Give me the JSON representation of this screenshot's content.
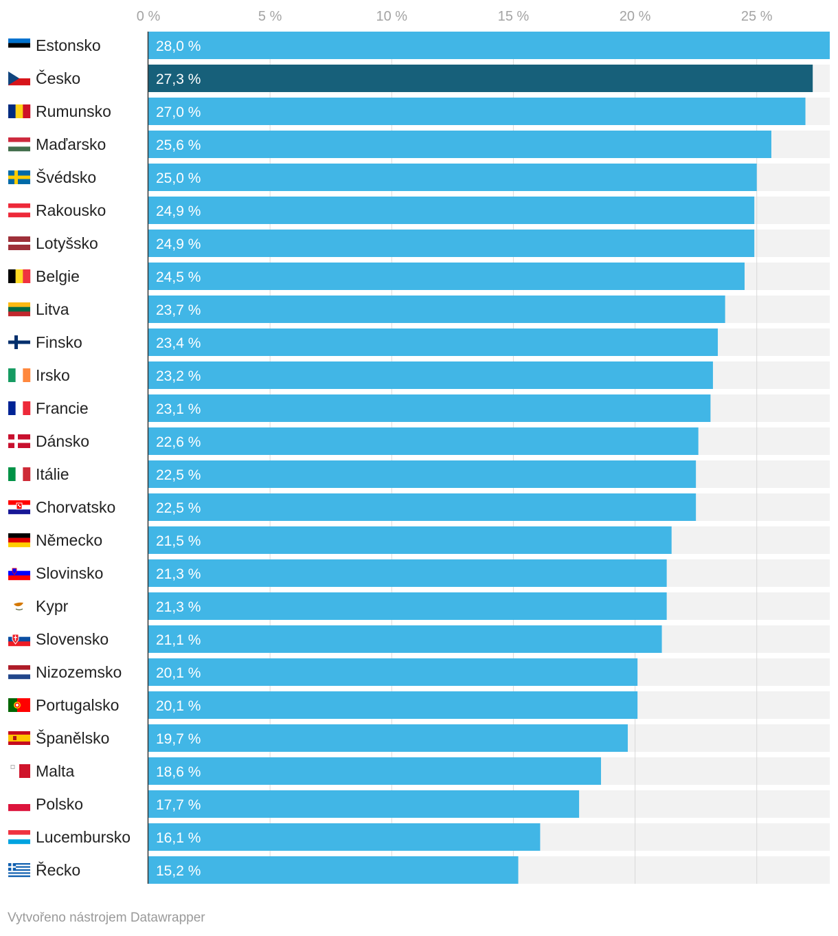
{
  "chart_data": {
    "type": "bar",
    "orientation": "horizontal",
    "xlim": [
      0,
      28
    ],
    "ticks": [
      0,
      5,
      10,
      15,
      20,
      25
    ],
    "tick_labels": [
      "0 %",
      "5 %",
      "10 %",
      "15 %",
      "20 %",
      "25 %"
    ],
    "grid": true,
    "categories": [
      "Estonsko",
      "Česko",
      "Rumunsko",
      "Maďarsko",
      "Švédsko",
      "Rakousko",
      "Lotyšsko",
      "Belgie",
      "Litva",
      "Finsko",
      "Irsko",
      "Francie",
      "Dánsko",
      "Itálie",
      "Chorvatsko",
      "Německo",
      "Slovinsko",
      "Kypr",
      "Slovensko",
      "Nizozemsko",
      "Portugalsko",
      "Španělsko",
      "Malta",
      "Polsko",
      "Lucembursko",
      "Řecko"
    ],
    "values": [
      28.0,
      27.3,
      27.0,
      25.6,
      25.0,
      24.9,
      24.9,
      24.5,
      23.7,
      23.4,
      23.2,
      23.1,
      22.6,
      22.5,
      22.5,
      21.5,
      21.3,
      21.3,
      21.1,
      20.1,
      20.1,
      19.7,
      18.6,
      17.7,
      16.1,
      15.2
    ],
    "value_labels": [
      "28,0 %",
      "27,3 %",
      "27,0 %",
      "25,6 %",
      "25,0 %",
      "24,9 %",
      "24,9 %",
      "24,5 %",
      "23,7 %",
      "23,4 %",
      "23,2 %",
      "23,1 %",
      "22,6 %",
      "22,5 %",
      "22,5 %",
      "21,5 %",
      "21,3 %",
      "21,3 %",
      "21,1 %",
      "20,1 %",
      "20,1 %",
      "19,7 %",
      "18,6 %",
      "17,7 %",
      "16,1 %",
      "15,2 %"
    ],
    "flags": [
      "flag-ee",
      "flag-cz",
      "flag-ro",
      "flag-hu",
      "flag-se",
      "flag-at",
      "flag-lv",
      "flag-be",
      "flag-lt",
      "flag-fi",
      "flag-ie",
      "flag-fr",
      "flag-dk",
      "flag-it",
      "flag-hr",
      "flag-de",
      "flag-si",
      "flag-cy",
      "flag-sk",
      "flag-nl",
      "flag-pt",
      "flag-es",
      "flag-mt",
      "flag-pl",
      "flag-lu",
      "flag-gr"
    ],
    "highlight": "Česko",
    "colors": {
      "bar": "#41b6e6",
      "highlight": "#17607a",
      "track": "#f2f2f2",
      "grid": "#d9d9d9",
      "axis": "#333333"
    }
  },
  "footer": {
    "credit": "Vytvořeno nástrojem Datawrapper"
  }
}
